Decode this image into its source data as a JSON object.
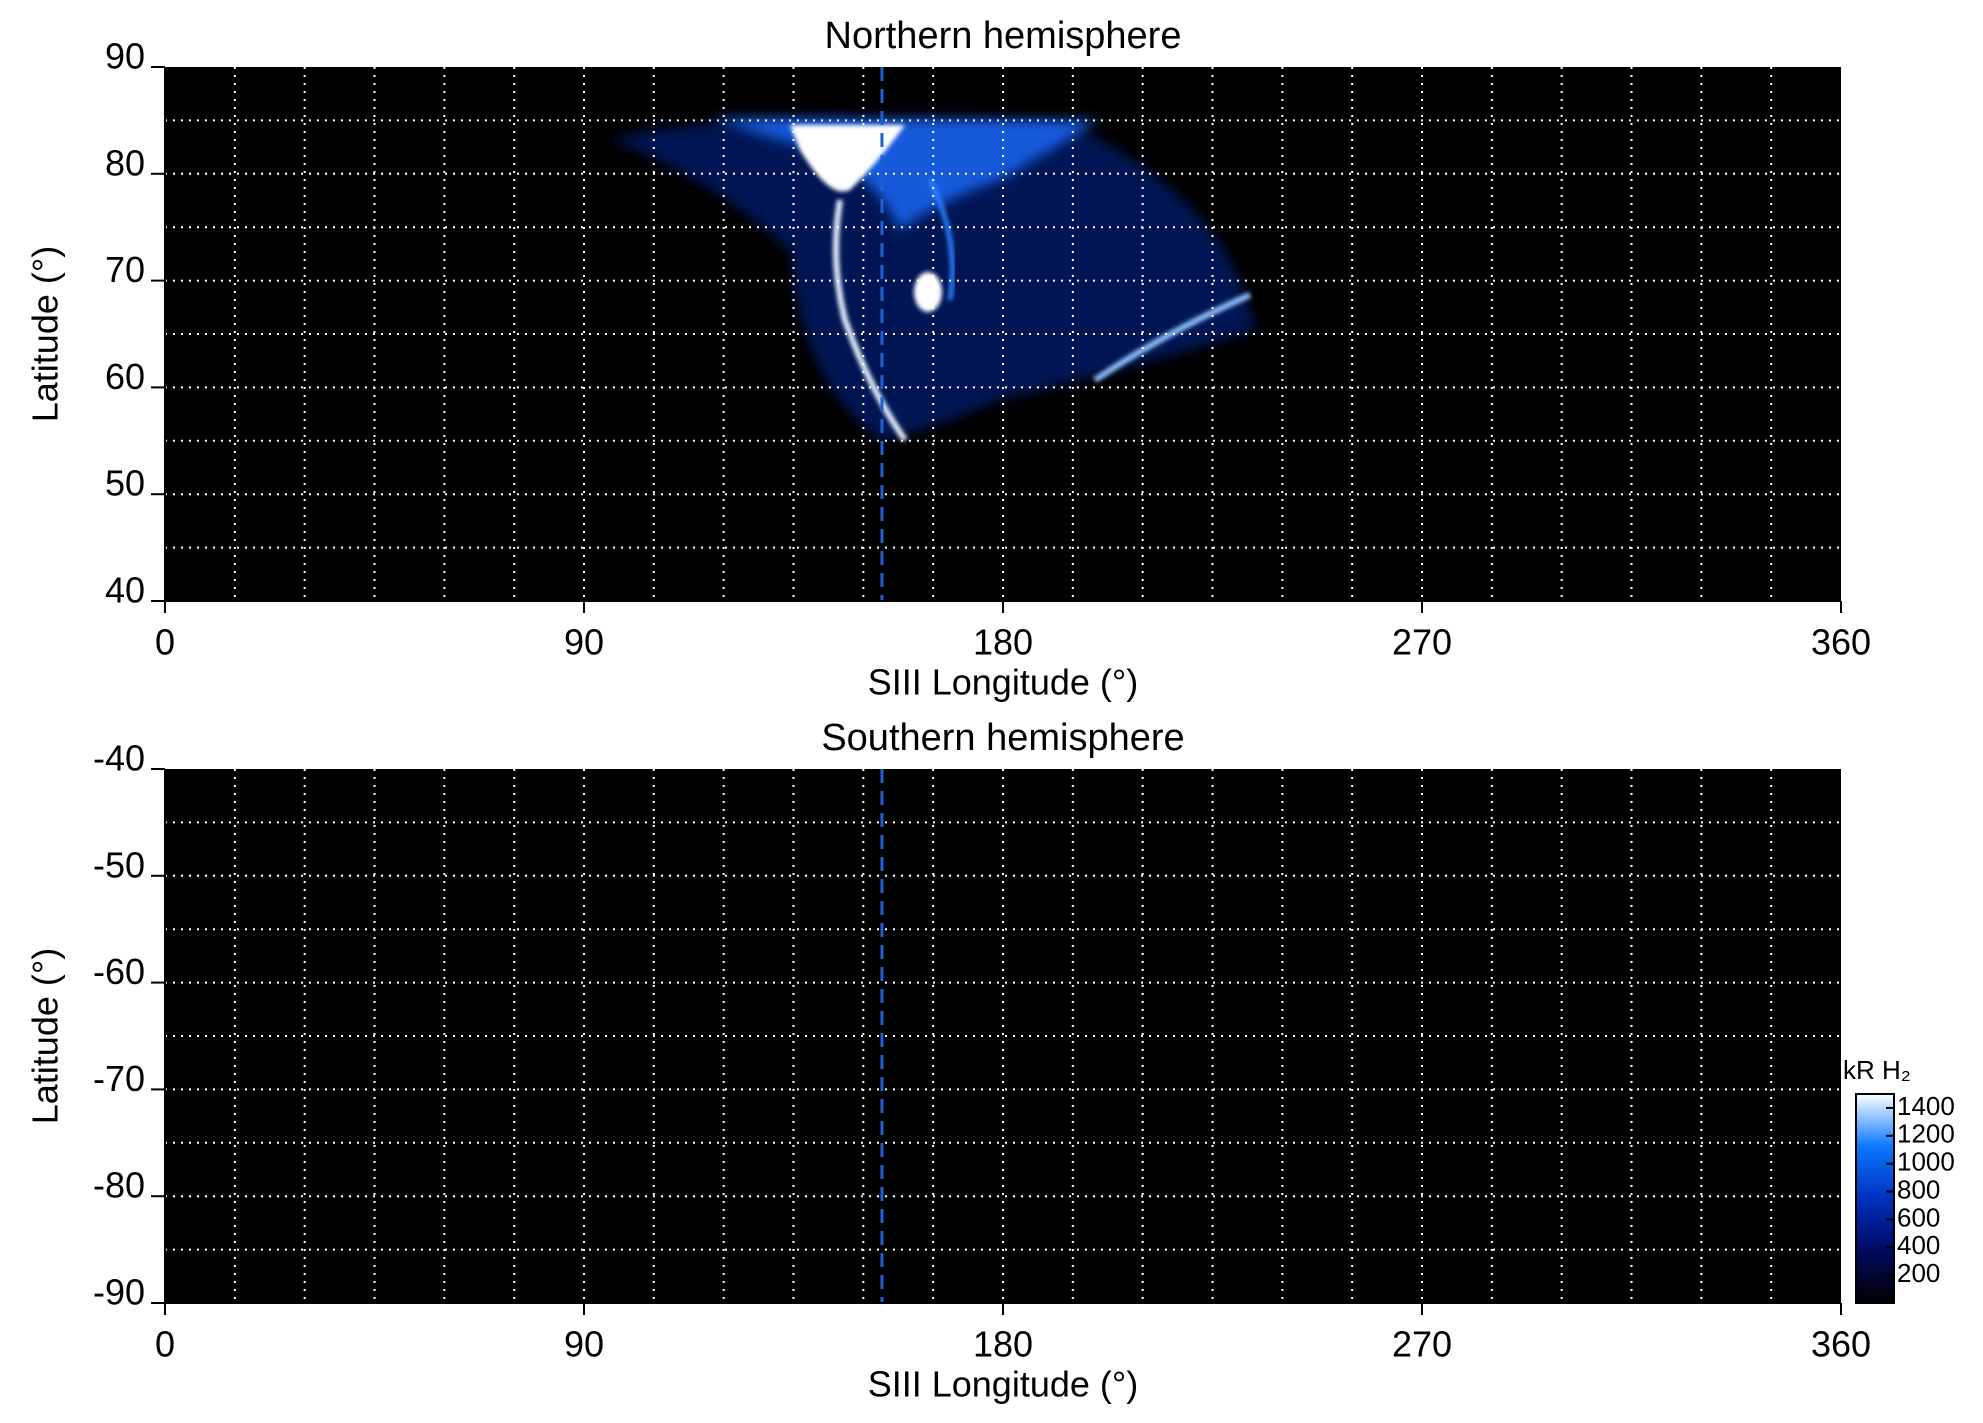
{
  "chart_data": [
    {
      "type": "heatmap",
      "title": "Northern hemisphere",
      "xlabel": "SIII Longitude (°)",
      "ylabel": "Latitude (°)",
      "xlim": [
        0,
        360
      ],
      "xticks": [
        0,
        90,
        180,
        270,
        360
      ],
      "ylim": [
        40,
        90
      ],
      "yticks": [
        40,
        50,
        60,
        70,
        80,
        90
      ],
      "grid": true,
      "xgrid": [
        15,
        30,
        45,
        60,
        75,
        90,
        105,
        120,
        135,
        150,
        165,
        180,
        195,
        210,
        225,
        240,
        255,
        270,
        285,
        300,
        315,
        330,
        345
      ],
      "ygrid": [
        45,
        50,
        55,
        60,
        65,
        70,
        75,
        80,
        85
      ],
      "vline": 154,
      "vline_color": "#1f5fd0"
    },
    {
      "type": "heatmap",
      "title": "Southern hemisphere",
      "xlabel": "SIII Longitude (°)",
      "ylabel": "Latitude (°)",
      "xlim": [
        0,
        360
      ],
      "xticks": [
        0,
        90,
        180,
        270,
        360
      ],
      "ylim": [
        -90,
        -40
      ],
      "yticks": [
        -90,
        -80,
        -70,
        -60,
        -50,
        -40
      ],
      "grid": true,
      "xgrid": [
        15,
        30,
        45,
        60,
        75,
        90,
        105,
        120,
        135,
        150,
        165,
        180,
        195,
        210,
        225,
        240,
        255,
        270,
        285,
        300,
        315,
        330,
        345
      ],
      "ygrid": [
        -85,
        -80,
        -75,
        -70,
        -65,
        -60,
        -55,
        -50,
        -45
      ],
      "vline": 154,
      "vline_color": "#1f5fd0",
      "colorbar": {
        "label": "kR H₂",
        "lim": [
          0,
          1500
        ],
        "ticks": [
          200,
          400,
          600,
          800,
          1000,
          1200,
          1400
        ],
        "colors": [
          "#000000",
          "#000a60",
          "#0030c0",
          "#0a78ff",
          "#ffffff"
        ]
      }
    }
  ]
}
